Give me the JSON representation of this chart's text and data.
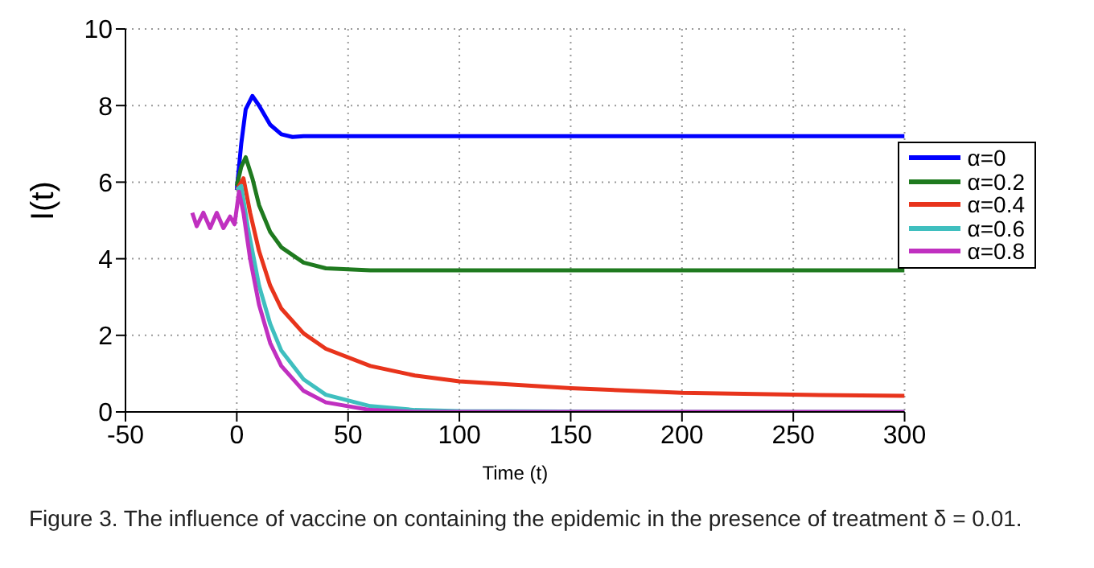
{
  "chart_data": {
    "type": "line",
    "xlabel": "Time (t)",
    "ylabel": "I(t)",
    "xlim": [
      -50,
      300
    ],
    "ylim": [
      0,
      10
    ],
    "xticks": [
      -50,
      0,
      50,
      100,
      150,
      200,
      250,
      300
    ],
    "yticks": [
      0,
      2,
      4,
      6,
      8,
      10
    ],
    "grid": true,
    "legend": "right",
    "marker": "none",
    "line_style": "solid",
    "annotations": [
      "Figure 3. The influence of vaccine on containing the epidemic in the presence of treatment δ = 0.01."
    ],
    "series": [
      {
        "name": "α=0",
        "color": "#0000ff",
        "x": [
          0,
          2,
          4,
          7,
          10,
          15,
          20,
          25,
          30,
          100,
          200,
          300
        ],
        "values": [
          5.8,
          7.0,
          7.9,
          8.25,
          8.0,
          7.5,
          7.25,
          7.18,
          7.2,
          7.2,
          7.2,
          7.2
        ]
      },
      {
        "name": "α=0.2",
        "color": "#1f7a1f",
        "x": [
          0,
          2,
          4,
          7,
          10,
          15,
          20,
          30,
          40,
          60,
          100,
          200,
          300
        ],
        "values": [
          5.9,
          6.4,
          6.65,
          6.1,
          5.4,
          4.7,
          4.3,
          3.9,
          3.75,
          3.7,
          3.7,
          3.7,
          3.7
        ]
      },
      {
        "name": "α=0.4",
        "color": "#e8341c",
        "x": [
          0,
          3,
          6,
          10,
          15,
          20,
          30,
          40,
          60,
          80,
          100,
          150,
          200,
          250,
          300
        ],
        "values": [
          5.8,
          6.1,
          5.2,
          4.2,
          3.3,
          2.7,
          2.05,
          1.65,
          1.2,
          0.95,
          0.8,
          0.62,
          0.5,
          0.45,
          0.42
        ]
      },
      {
        "name": "α=0.6",
        "color": "#3fbfbf",
        "x": [
          0,
          2,
          5,
          10,
          15,
          20,
          30,
          40,
          60,
          80,
          100,
          200,
          300
        ],
        "values": [
          5.8,
          5.9,
          4.8,
          3.3,
          2.3,
          1.6,
          0.85,
          0.45,
          0.15,
          0.05,
          0.02,
          0,
          0
        ]
      },
      {
        "name": "α=0.8",
        "color": "#c030c0",
        "x": [
          -20,
          -18,
          -15,
          -12,
          -9,
          -6,
          -3,
          -1,
          1,
          3,
          6,
          10,
          15,
          20,
          30,
          40,
          60,
          80,
          200,
          300
        ],
        "values": [
          5.2,
          4.85,
          5.2,
          4.8,
          5.2,
          4.8,
          5.1,
          4.9,
          5.75,
          5.2,
          4.0,
          2.8,
          1.8,
          1.2,
          0.55,
          0.25,
          0.05,
          0,
          0,
          0
        ]
      }
    ]
  }
}
